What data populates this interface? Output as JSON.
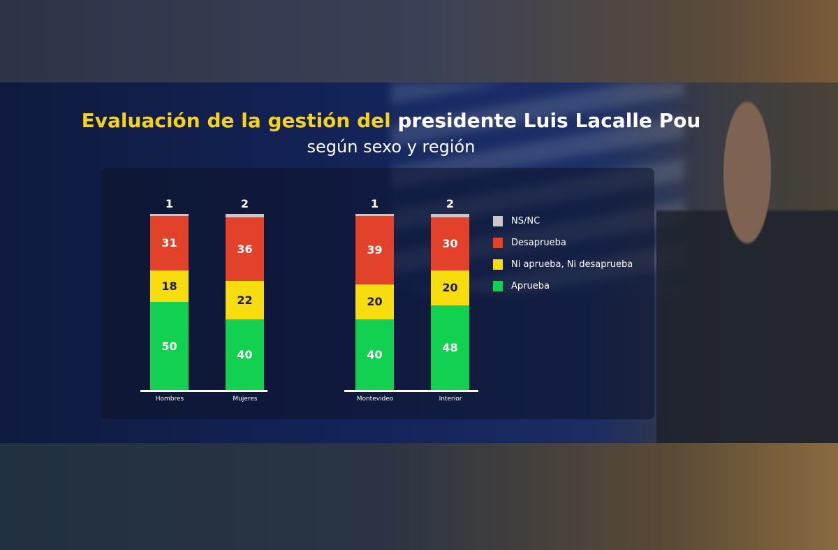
{
  "title_part1": "Evaluación de la gestión del",
  "title_part2": "presidente Luis Lacalle Pou",
  "subtitle": "según sexo y región",
  "chart_data": {
    "type": "bar",
    "stacked": true,
    "title": "Evaluación de la gestión del presidente Luis Lacalle Pou según sexo y región",
    "categories": [
      "Hombres",
      "Mujeres",
      "Montevideo",
      "Interior"
    ],
    "groups": [
      [
        "Hombres",
        "Mujeres"
      ],
      [
        "Montevideo",
        "Interior"
      ]
    ],
    "series": [
      {
        "name": "Aprueba",
        "color": "#12d150",
        "label_color": "#ffffff",
        "values": [
          50,
          40,
          40,
          48
        ]
      },
      {
        "name": "Ni aprueba, Ni desaprueba",
        "color": "#f7dc0e",
        "label_color": "#1a1a5a",
        "values": [
          18,
          22,
          20,
          20
        ]
      },
      {
        "name": "Desaprueba",
        "color": "#e2412a",
        "label_color": "#ffffff",
        "values": [
          31,
          36,
          39,
          30
        ]
      },
      {
        "name": "NS/NC",
        "color": "#c8c8c8",
        "label_color": "#ffffff",
        "values": [
          1,
          2,
          1,
          2
        ]
      }
    ],
    "legend_order": [
      "NS/NC",
      "Desaprueba",
      "Ni aprueba, Ni desaprueba",
      "Aprueba"
    ],
    "legend": "right",
    "ylim": [
      0,
      100
    ],
    "grid": false
  }
}
